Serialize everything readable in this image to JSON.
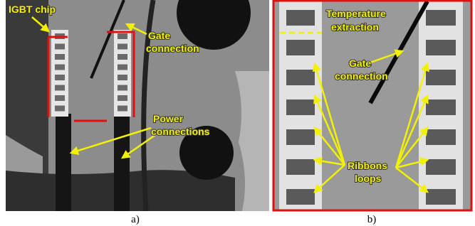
{
  "panels": [
    {
      "label": "a)",
      "annotations": [
        {
          "lines": [
            "IGBT chip"
          ]
        },
        {
          "lines": [
            "Gate",
            "connection"
          ]
        },
        {
          "lines": [
            "Power",
            "connections"
          ]
        }
      ]
    },
    {
      "label": "b)",
      "annotations": [
        {
          "lines": [
            "Temperature",
            "extraction"
          ]
        },
        {
          "lines": [
            "Gate",
            "connection"
          ]
        },
        {
          "lines": [
            "Ribbons",
            "loops"
          ]
        }
      ]
    }
  ]
}
